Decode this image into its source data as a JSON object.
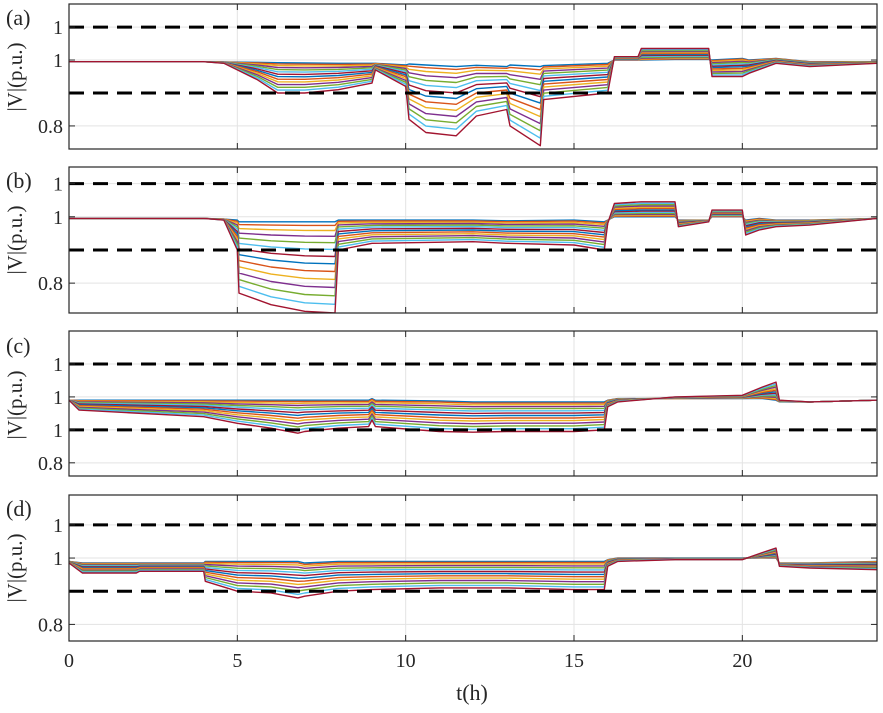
{
  "chart_data": [
    {
      "panel_label": "(a)",
      "type": "line",
      "ylabel": "|V|(p.u.)",
      "xlim": [
        0,
        24
      ],
      "ylim": [
        0.73,
        1.17
      ],
      "yticks": [
        0.8,
        1.0,
        1.1
      ],
      "ytick_labels": [
        "0.8",
        "1",
        "1"
      ],
      "grid": true,
      "limits": {
        "upper": 1.1,
        "lower": 0.9
      },
      "family": {
        "t": [
          0,
          4,
          4.6,
          5.6,
          6.2,
          7,
          8,
          9,
          9.1,
          10,
          10.1,
          10.6,
          11.5,
          12.1,
          13,
          13.1,
          14,
          14.1,
          16,
          16.2,
          16.9,
          17,
          18,
          19,
          19.1,
          20,
          20.2,
          21,
          22,
          24
        ],
        "top": [
          0.995,
          0.995,
          0.994,
          0.993,
          0.992,
          0.991,
          0.99,
          0.99,
          0.99,
          0.985,
          0.988,
          0.985,
          0.98,
          0.984,
          0.98,
          0.985,
          0.98,
          0.983,
          0.99,
          1.0,
          1.0,
          1.0,
          1.002,
          1.002,
          1.0,
          1.005,
          1.0,
          1.005,
          0.995,
          0.995
        ],
        "bot": [
          0.995,
          0.995,
          0.99,
          0.94,
          0.9,
          0.9,
          0.91,
          0.93,
          0.97,
          0.92,
          0.82,
          0.78,
          0.77,
          0.83,
          0.85,
          0.8,
          0.74,
          0.88,
          0.9,
          1.01,
          1.01,
          1.035,
          1.035,
          1.035,
          0.95,
          0.95,
          0.96,
          0.99,
          0.98,
          0.99
        ]
      }
    },
    {
      "panel_label": "(b)",
      "type": "line",
      "ylabel": "|V|(p.u.)",
      "xlim": [
        0,
        24
      ],
      "ylim": [
        0.71,
        1.15
      ],
      "yticks": [
        0.8,
        1.0,
        1.1
      ],
      "ytick_labels": [
        "0.8",
        "1",
        "1"
      ],
      "grid": true,
      "limits": {
        "upper": 1.1,
        "lower": 0.9
      },
      "family": {
        "t": [
          0,
          4,
          4.6,
          5,
          5.05,
          6,
          7,
          7.9,
          8,
          9,
          12,
          13,
          15,
          15.9,
          16,
          16.2,
          17,
          18,
          18.1,
          19,
          19.1,
          20,
          20.1,
          20.5,
          21,
          22,
          24
        ],
        "top": [
          0.995,
          0.995,
          0.993,
          0.99,
          0.985,
          0.985,
          0.985,
          0.985,
          0.99,
          0.99,
          0.99,
          0.988,
          0.99,
          0.985,
          0.99,
          1.0,
          1.0,
          1.0,
          0.99,
          0.99,
          1.0,
          1.0,
          0.99,
          0.995,
          0.99,
          0.99,
          0.995
        ],
        "bot": [
          0.995,
          0.995,
          0.99,
          0.9,
          0.77,
          0.735,
          0.715,
          0.71,
          0.9,
          0.92,
          0.925,
          0.92,
          0.915,
          0.9,
          0.98,
          1.04,
          1.045,
          1.045,
          0.97,
          0.985,
          1.02,
          1.02,
          0.945,
          0.96,
          0.97,
          0.975,
          0.995
        ]
      }
    },
    {
      "panel_label": "(c)",
      "type": "line",
      "ylabel": "|V|(p.u.)",
      "xlim": [
        0,
        24
      ],
      "ylim": [
        0.76,
        1.2
      ],
      "yticks": [
        0.8,
        0.9,
        1.0,
        1.1
      ],
      "ytick_labels": [
        "0.8",
        "1",
        "1",
        "1"
      ],
      "grid": true,
      "limits": {
        "upper": 1.1,
        "lower": 0.9
      },
      "family": {
        "t": [
          0,
          0.3,
          4,
          5,
          6,
          6.8,
          7,
          8,
          8.9,
          9,
          9.1,
          11,
          12,
          13,
          15,
          15.9,
          16,
          16.3,
          18,
          20,
          20.6,
          21,
          21.1,
          22,
          24
        ],
        "top": [
          0.99,
          0.99,
          0.99,
          0.99,
          0.99,
          0.99,
          0.99,
          0.99,
          0.99,
          0.995,
          0.99,
          0.988,
          0.985,
          0.985,
          0.985,
          0.985,
          0.99,
          0.995,
          0.995,
          0.995,
          0.995,
          0.99,
          0.985,
          0.985,
          0.99
        ],
        "bot": [
          0.99,
          0.96,
          0.94,
          0.92,
          0.905,
          0.89,
          0.895,
          0.905,
          0.91,
          0.93,
          0.91,
          0.895,
          0.893,
          0.895,
          0.895,
          0.9,
          0.97,
          0.985,
          1.0,
          1.005,
          1.03,
          1.045,
          0.99,
          0.985,
          0.99
        ]
      }
    },
    {
      "panel_label": "(d)",
      "type": "line",
      "ylabel": "|V|(p.u.)",
      "xlim": [
        0,
        24
      ],
      "ylim": [
        0.75,
        1.19
      ],
      "yticks": [
        0.8,
        1.0,
        1.1
      ],
      "ytick_labels": [
        "0.8",
        "1",
        "1"
      ],
      "grid": true,
      "limits": {
        "upper": 1.1,
        "lower": 0.9
      },
      "family": {
        "t": [
          0,
          0.4,
          2,
          2.1,
          4,
          4.05,
          5,
          6,
          6.8,
          7,
          8,
          9,
          11,
          13,
          15,
          15.9,
          16,
          16.3,
          18,
          20,
          20.7,
          21,
          21.1,
          22,
          24
        ],
        "top": [
          0.99,
          0.985,
          0.985,
          0.985,
          0.985,
          0.99,
          0.99,
          0.99,
          0.99,
          0.985,
          0.99,
          0.99,
          0.99,
          0.99,
          0.99,
          0.99,
          0.995,
          1.0,
          1.0,
          1.0,
          1.0,
          1.0,
          0.985,
          0.985,
          0.99
        ],
        "bot": [
          0.985,
          0.955,
          0.955,
          0.96,
          0.96,
          0.93,
          0.9,
          0.895,
          0.88,
          0.885,
          0.9,
          0.905,
          0.91,
          0.91,
          0.905,
          0.905,
          0.975,
          0.99,
          0.995,
          0.995,
          1.02,
          1.03,
          0.975,
          0.97,
          0.965
        ]
      }
    }
  ],
  "x_axis": {
    "label": "t(h)",
    "ticks": [
      0,
      5,
      10,
      15,
      20
    ],
    "tick_labels": [
      "0",
      "5",
      "10",
      "15",
      "20"
    ]
  },
  "series_colors": [
    "#0072BD",
    "#D95319",
    "#EDB120",
    "#7E2F8E",
    "#77AC30",
    "#4DBEEE",
    "#A2142F"
  ],
  "series_count": 14
}
